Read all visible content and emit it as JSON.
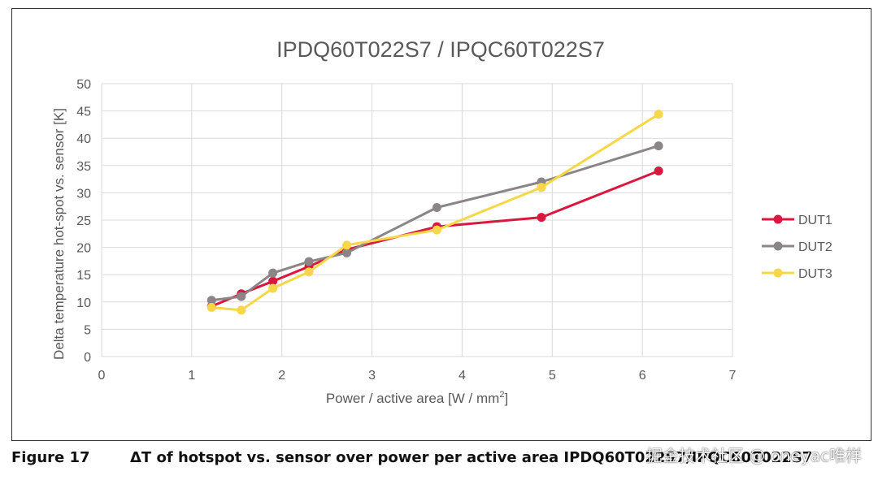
{
  "chart_data": {
    "type": "line",
    "title": "IPDQ60T022S7 / IPQC60T022S7",
    "xlabel_main": "Power / active area [W / mm",
    "xlabel_sup": "2",
    "xlabel_end": "]",
    "ylabel": "Delta temperature hot-spot vs. sensor [K]",
    "xlim": [
      0,
      7
    ],
    "ylim": [
      0,
      50
    ],
    "xticks": [
      "0",
      "1",
      "2",
      "3",
      "4",
      "5",
      "6",
      "7"
    ],
    "yticks": [
      "0",
      "5",
      "10",
      "15",
      "20",
      "25",
      "30",
      "35",
      "40",
      "45",
      "50"
    ],
    "grid": true,
    "legend_position": "right",
    "series": [
      {
        "name": "DUT1",
        "color": "#d9183f",
        "points": [
          [
            1.22,
            9.2
          ],
          [
            1.55,
            11.5
          ],
          [
            1.9,
            13.8
          ],
          [
            2.3,
            16.5
          ],
          [
            2.72,
            19.6
          ],
          [
            3.72,
            23.8
          ],
          [
            4.88,
            25.5
          ],
          [
            6.18,
            34.0
          ]
        ]
      },
      {
        "name": "DUT2",
        "color": "#8c8587",
        "points": [
          [
            1.22,
            10.3
          ],
          [
            1.55,
            11.0
          ],
          [
            1.9,
            15.3
          ],
          [
            2.3,
            17.4
          ],
          [
            2.72,
            19.0
          ],
          [
            3.72,
            27.3
          ],
          [
            4.88,
            32.0
          ],
          [
            6.18,
            38.6
          ]
        ]
      },
      {
        "name": "DUT3",
        "color": "#f7d74a",
        "points": [
          [
            1.22,
            9.0
          ],
          [
            1.55,
            8.5
          ],
          [
            1.9,
            12.5
          ],
          [
            2.3,
            15.5
          ],
          [
            2.72,
            20.4
          ],
          [
            3.72,
            23.2
          ],
          [
            4.88,
            31.0
          ],
          [
            6.18,
            44.4
          ]
        ]
      }
    ]
  },
  "caption": {
    "label": "Figure 17",
    "text": "ΔT of hotspot vs. sensor over power per active area IPDQ60T022S7/IPQC60T022S7"
  },
  "watermark": "掘金技术社区 @ oneyac唯样"
}
